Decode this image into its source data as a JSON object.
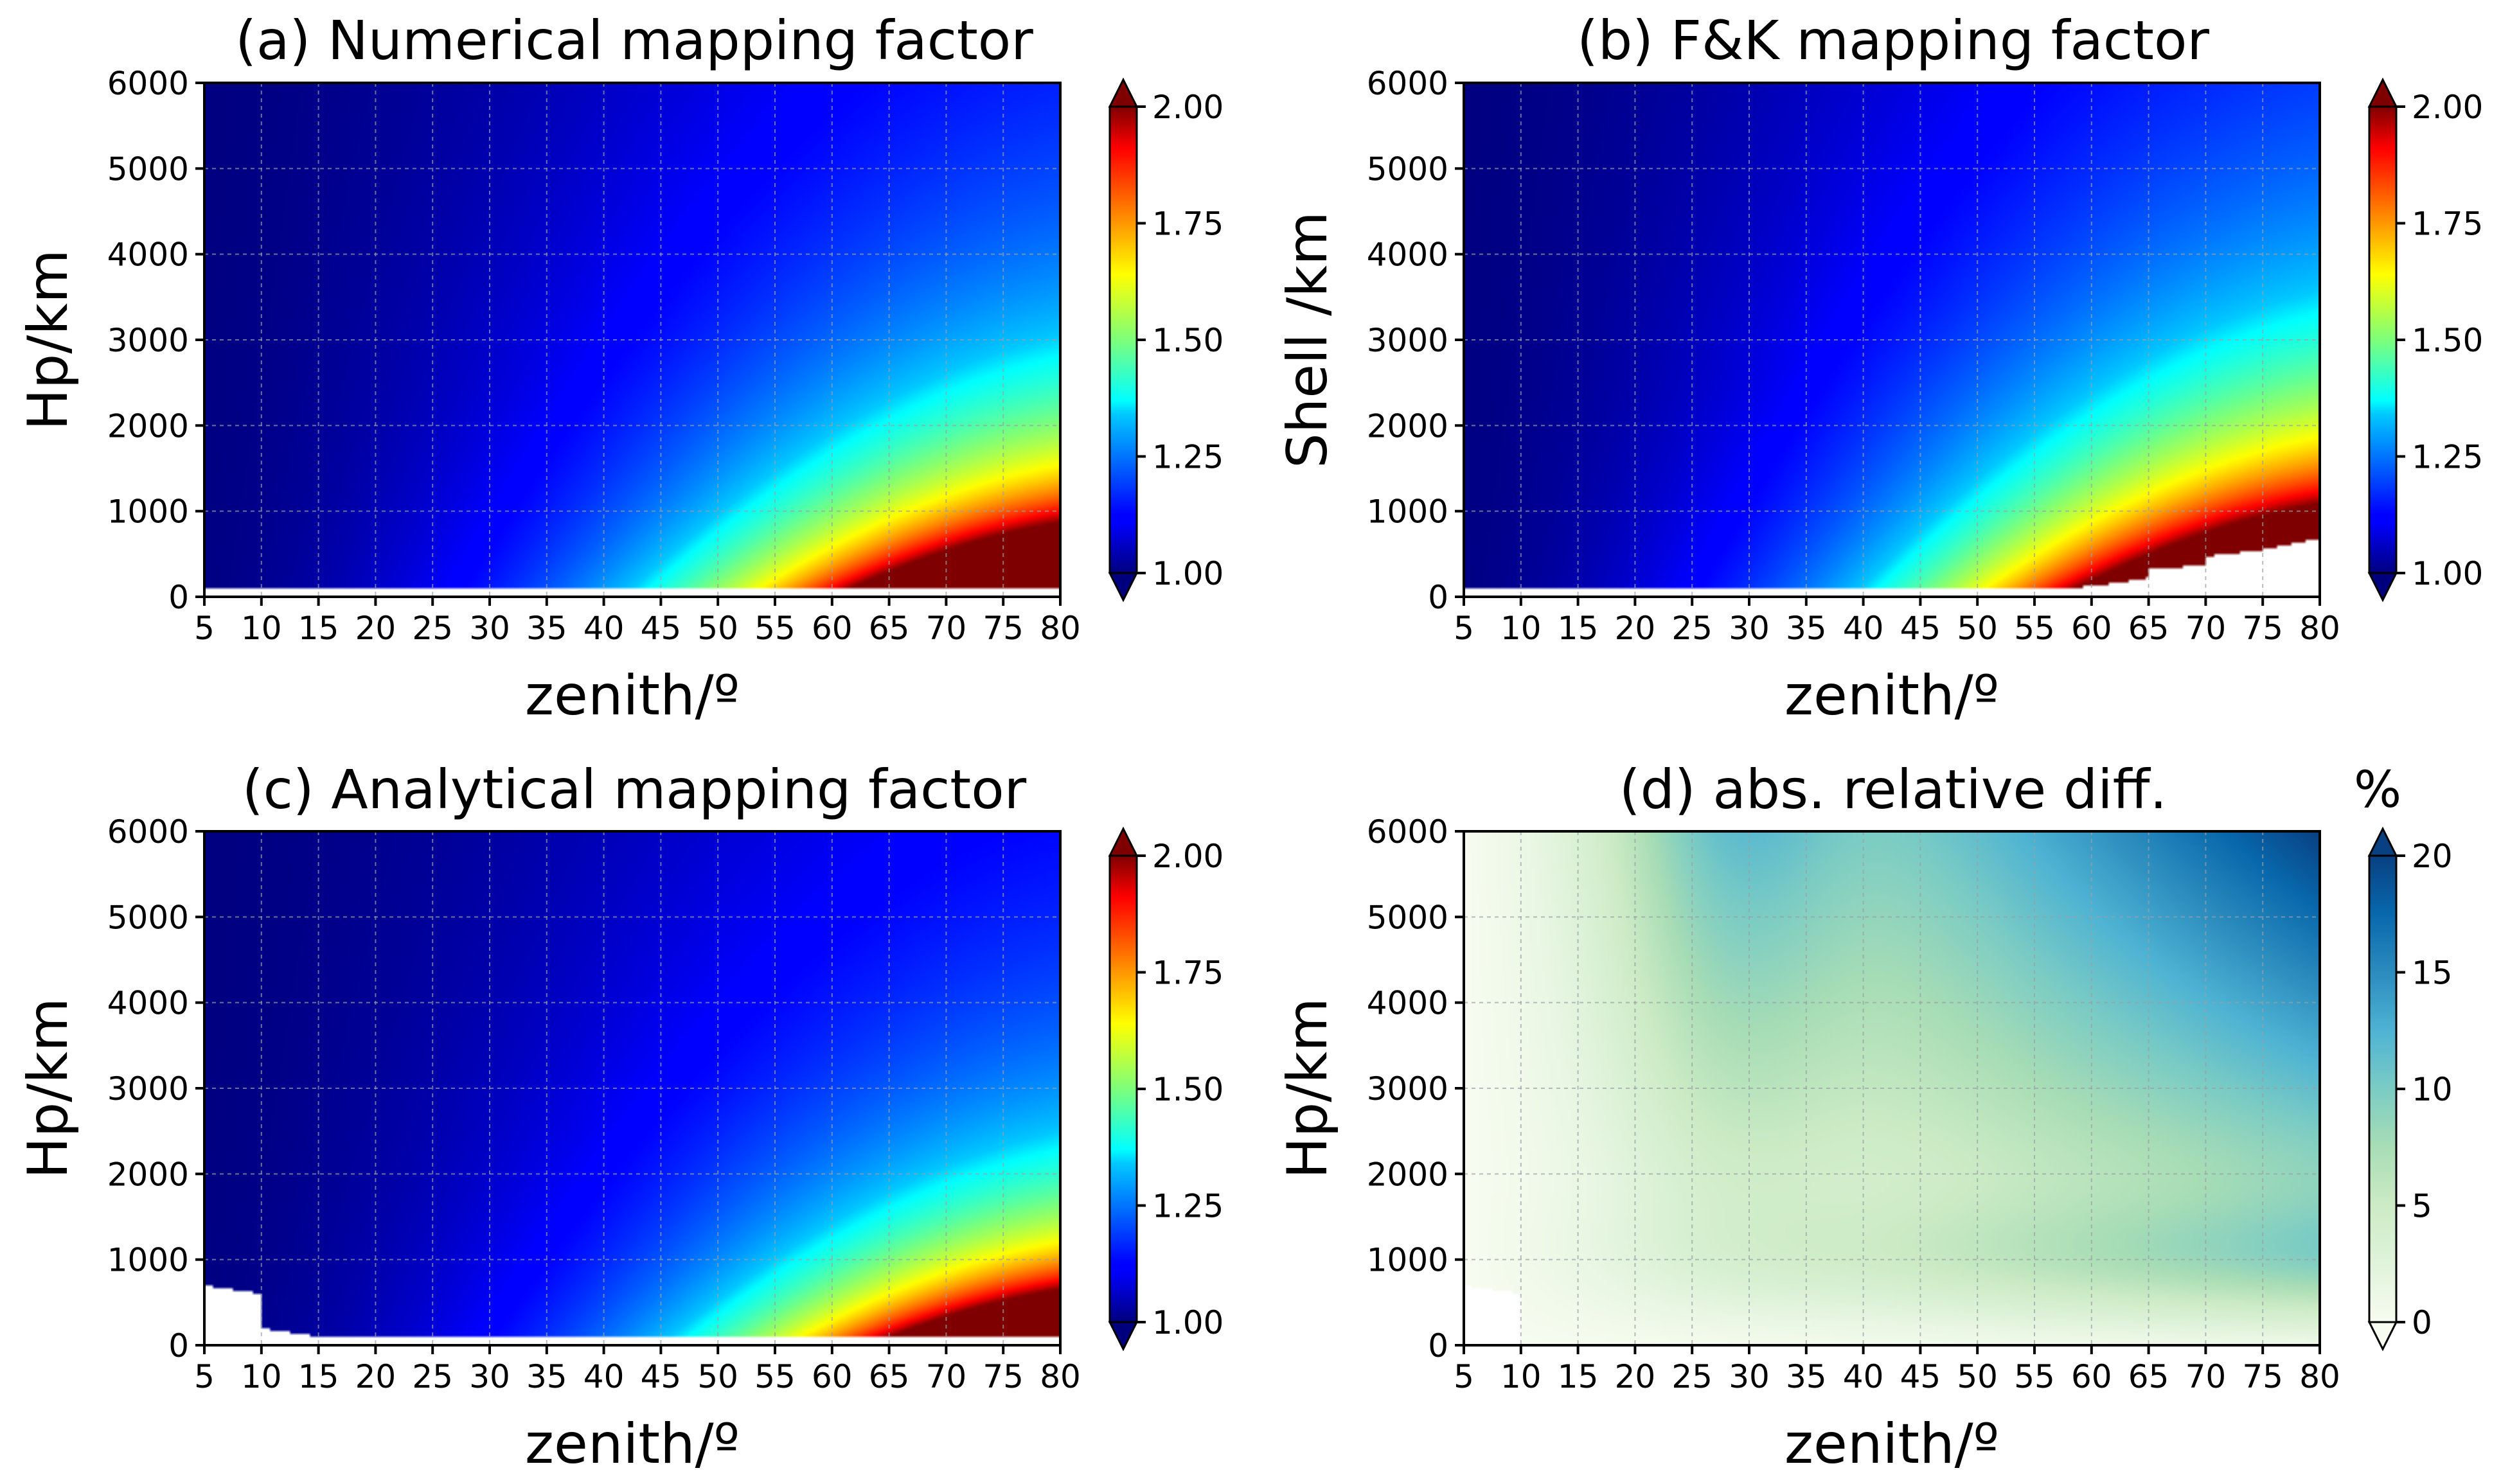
{
  "chart_data": [
    {
      "id": "a",
      "type": "heatmap",
      "title": "(a) Numerical mapping factor",
      "xlabel": "zenith/º",
      "ylabel": "Hp/km",
      "xlim": [
        5,
        80
      ],
      "ylim": [
        0,
        6000
      ],
      "xticks": [
        "5",
        "10",
        "15",
        "20",
        "25",
        "30",
        "35",
        "40",
        "45",
        "50",
        "55",
        "60",
        "65",
        "70",
        "75",
        "80"
      ],
      "yticks": [
        "0",
        "1000",
        "2000",
        "3000",
        "4000",
        "5000",
        "6000"
      ],
      "grid": true,
      "colormap": "jet",
      "vlim": [
        1.0,
        2.0
      ],
      "colorbar_ticks": [
        "1.00",
        "1.25",
        "1.50",
        "1.75",
        "2.00"
      ],
      "colorbar_extend": "both",
      "colorbar_unit": "",
      "model": "mapping",
      "data_floor_km": [
        [
          5,
          100
        ],
        [
          80,
          100
        ]
      ]
    },
    {
      "id": "b",
      "type": "heatmap",
      "title": "(b) F&K mapping factor",
      "xlabel": "zenith/º",
      "ylabel": "Shell /km",
      "xlim": [
        5,
        80
      ],
      "ylim": [
        0,
        6000
      ],
      "xticks": [
        "5",
        "10",
        "15",
        "20",
        "25",
        "30",
        "35",
        "40",
        "45",
        "50",
        "55",
        "60",
        "65",
        "70",
        "75",
        "80"
      ],
      "yticks": [
        "0",
        "1000",
        "2000",
        "3000",
        "4000",
        "5000",
        "6000"
      ],
      "grid": true,
      "colormap": "jet",
      "vlim": [
        1.0,
        2.0
      ],
      "colorbar_ticks": [
        "1.00",
        "1.25",
        "1.50",
        "1.75",
        "2.00"
      ],
      "colorbar_extend": "both",
      "colorbar_unit": "",
      "model": "mapping",
      "data_floor_km": [
        [
          5,
          100
        ],
        [
          55,
          100
        ],
        [
          60,
          120
        ],
        [
          65,
          220
        ],
        [
          65,
          320
        ],
        [
          70,
          370
        ],
        [
          70,
          470
        ],
        [
          75,
          550
        ],
        [
          80,
          680
        ]
      ]
    },
    {
      "id": "c",
      "type": "heatmap",
      "title": "(c) Analytical mapping factor",
      "xlabel": "zenith/º",
      "ylabel": "Hp/km",
      "xlim": [
        5,
        80
      ],
      "ylim": [
        0,
        6000
      ],
      "xticks": [
        "5",
        "10",
        "15",
        "20",
        "25",
        "30",
        "35",
        "40",
        "45",
        "50",
        "55",
        "60",
        "65",
        "70",
        "75",
        "80"
      ],
      "yticks": [
        "0",
        "1000",
        "2000",
        "3000",
        "4000",
        "5000",
        "6000"
      ],
      "grid": true,
      "colormap": "jet",
      "vlim": [
        1.0,
        2.0
      ],
      "colorbar_ticks": [
        "1.00",
        "1.25",
        "1.50",
        "1.75",
        "2.00"
      ],
      "colorbar_extend": "both",
      "colorbar_unit": "",
      "model": "mapping",
      "data_floor_km": [
        [
          5,
          700
        ],
        [
          10,
          600
        ],
        [
          10,
          200
        ],
        [
          15,
          100
        ],
        [
          80,
          100
        ]
      ]
    },
    {
      "id": "d",
      "type": "heatmap",
      "title": "(d) abs. relative diff.",
      "xlabel": "zenith/º",
      "ylabel": "Hp/km",
      "xlim": [
        5,
        80
      ],
      "ylim": [
        0,
        6000
      ],
      "xticks": [
        "5",
        "10",
        "15",
        "20",
        "25",
        "30",
        "35",
        "40",
        "45",
        "50",
        "55",
        "60",
        "65",
        "70",
        "75",
        "80"
      ],
      "yticks": [
        "0",
        "1000",
        "2000",
        "3000",
        "4000",
        "5000",
        "6000"
      ],
      "grid": true,
      "colormap": "GnBu",
      "vlim": [
        0,
        20
      ],
      "colorbar_ticks": [
        "0",
        "5",
        "10",
        "15",
        "20"
      ],
      "colorbar_extend": "both",
      "colorbar_unit": "%",
      "model": "difference",
      "data_floor_km": [
        [
          5,
          700
        ],
        [
          10,
          600
        ],
        [
          10,
          0
        ],
        [
          80,
          0
        ]
      ]
    }
  ]
}
